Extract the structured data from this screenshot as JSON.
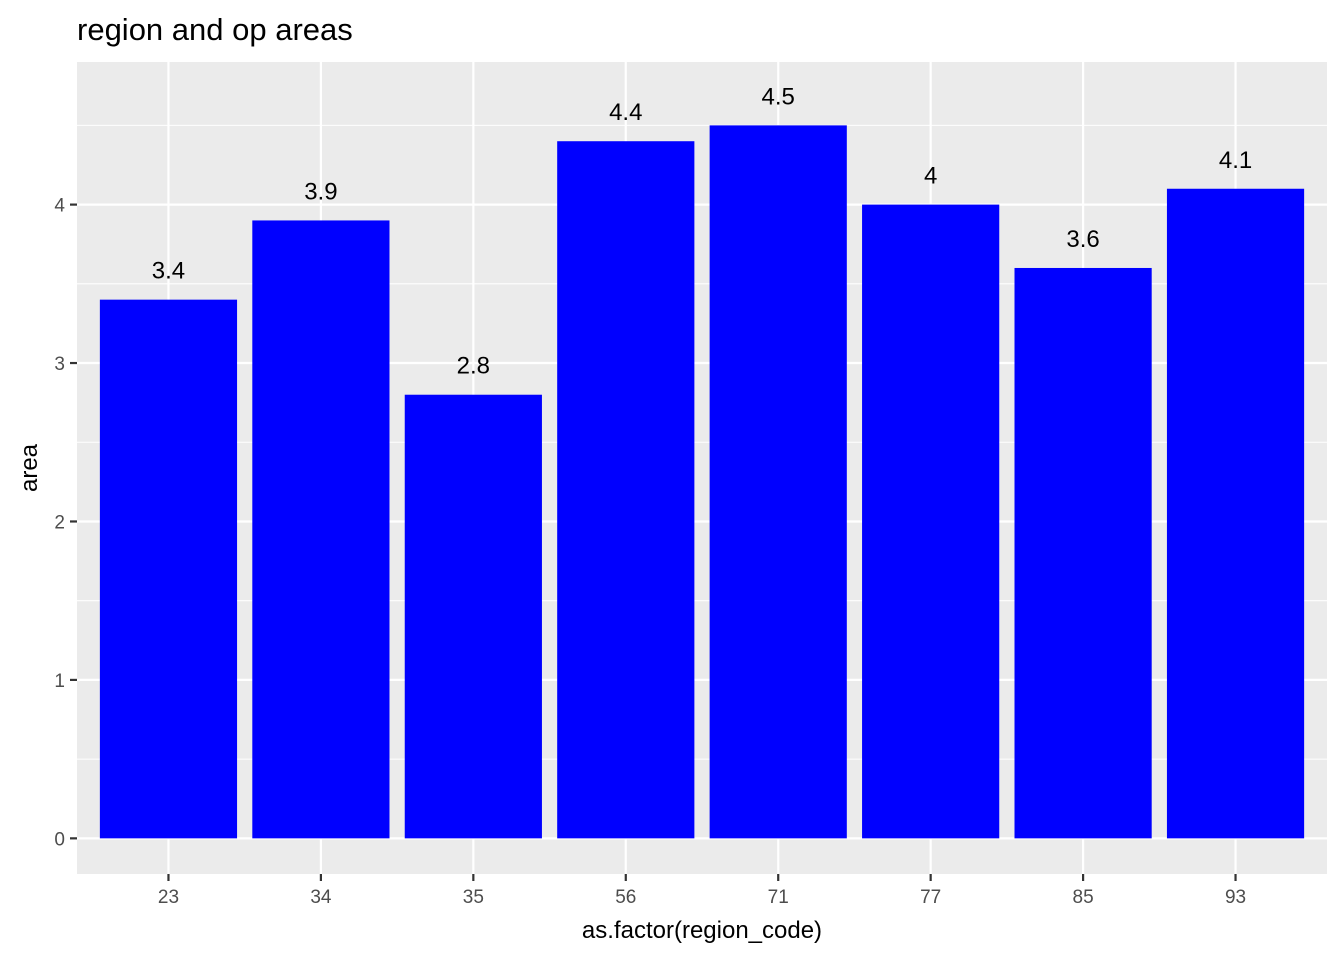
{
  "chart_data": {
    "type": "bar",
    "title": "region and op areas",
    "xlabel": "as.factor(region_code)",
    "ylabel": "area",
    "categories": [
      "23",
      "34",
      "35",
      "56",
      "71",
      "77",
      "85",
      "93"
    ],
    "values": [
      3.4,
      3.9,
      2.8,
      4.4,
      4.5,
      4,
      3.6,
      4.1
    ],
    "data_labels": [
      "3.4",
      "3.9",
      "2.8",
      "4.4",
      "4.5",
      "4",
      "3.6",
      "4.1"
    ],
    "y_ticks": [
      "0",
      "1",
      "2",
      "3",
      "4"
    ],
    "ylim": [
      -0.225,
      4.9
    ],
    "grid": true,
    "legend": "none",
    "colors": {
      "bar": "#0000ff",
      "panel": "#ebebeb",
      "grid": "#ffffff",
      "tick_text": "#4d4d4d",
      "text": "#000000"
    }
  }
}
